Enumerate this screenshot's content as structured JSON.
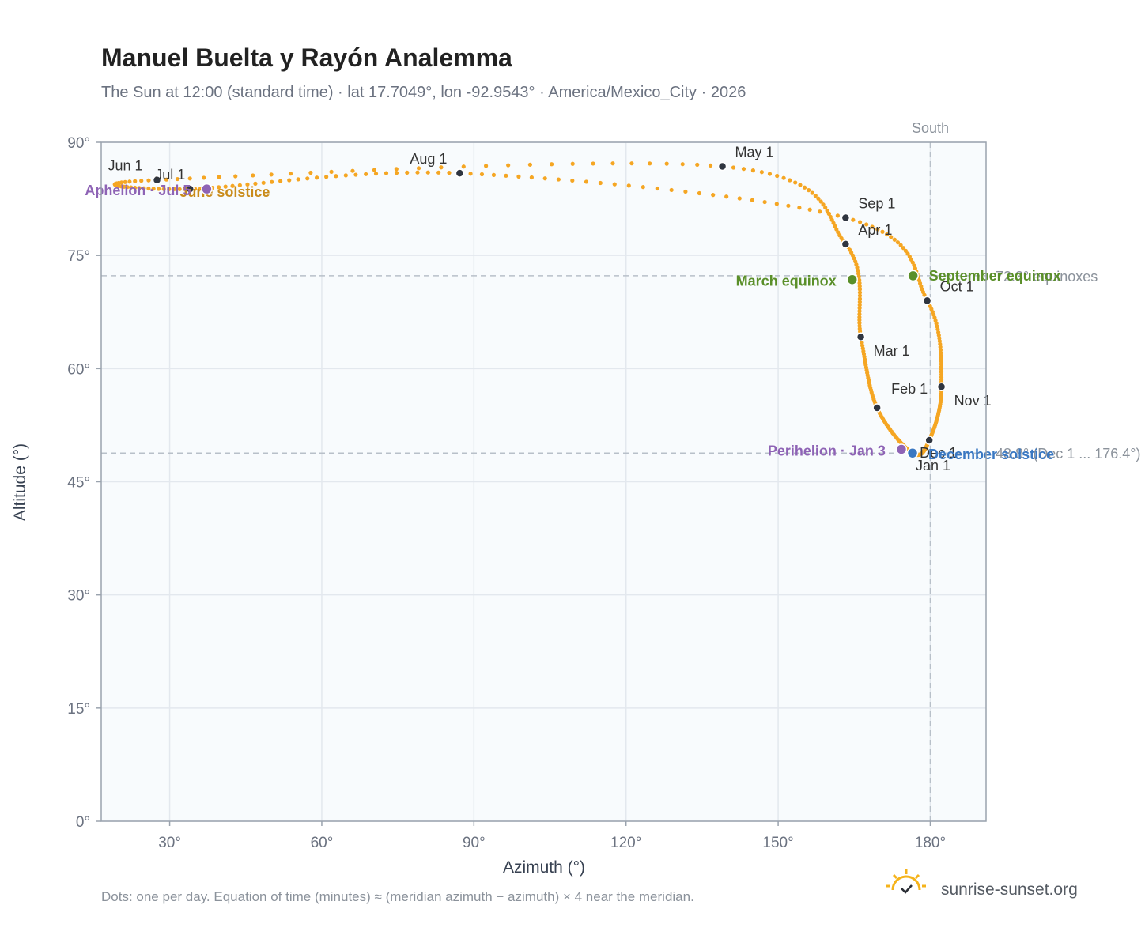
{
  "chart_data": {
    "type": "scatter",
    "title": "Manuel Buelta y Rayón Analemma",
    "subtitle": "The Sun at 12:00 (standard time) · lat 17.7049°, lon -92.9543° · America/Mexico_City · 2026",
    "xlabel": "Azimuth (°)",
    "ylabel": "Altitude (°)",
    "xlim": [
      16.5,
      191
    ],
    "ylim": [
      0,
      90
    ],
    "x_ticks": [
      {
        "value": 30,
        "label": "30°"
      },
      {
        "value": 60,
        "label": "60°"
      },
      {
        "value": 90,
        "label": "90°"
      },
      {
        "value": 120,
        "label": "120°"
      },
      {
        "value": 150,
        "label": "150°"
      },
      {
        "value": 180,
        "label": "180°"
      }
    ],
    "y_ticks": [
      {
        "value": 0,
        "label": "0°"
      },
      {
        "value": 15,
        "label": "15°"
      },
      {
        "value": 30,
        "label": "30°"
      },
      {
        "value": 45,
        "label": "45°"
      },
      {
        "value": 60,
        "label": "60°"
      },
      {
        "value": 75,
        "label": "75°"
      },
      {
        "value": 90,
        "label": "90°"
      }
    ],
    "grid": true,
    "path_color": "#f5a623",
    "month_markers": [
      {
        "label": "Jan 1",
        "az": 176.5,
        "alt": 48.8
      },
      {
        "label": "Feb 1",
        "az": 169.5,
        "alt": 54.8
      },
      {
        "label": "Mar 1",
        "az": 166.3,
        "alt": 64.2
      },
      {
        "label": "Apr 1",
        "az": 163.3,
        "alt": 76.5
      },
      {
        "label": "May 1",
        "az": 139.0,
        "alt": 86.8
      },
      {
        "label": "Jun 1",
        "az": 27.5,
        "alt": 85.0
      },
      {
        "label": "Jul 1",
        "az": 34.0,
        "alt": 83.8
      },
      {
        "label": "Aug 1",
        "az": 87.2,
        "alt": 85.9
      },
      {
        "label": "Sep 1",
        "az": 163.3,
        "alt": 80.0
      },
      {
        "label": "Oct 1",
        "az": 179.4,
        "alt": 69.0
      },
      {
        "label": "Nov 1",
        "az": 182.2,
        "alt": 57.6
      },
      {
        "label": "Dec 1",
        "az": 179.8,
        "alt": 50.5
      }
    ],
    "events": [
      {
        "label": "March equinox",
        "az": 164.6,
        "alt": 71.8,
        "color": "#5a8f29"
      },
      {
        "label": "September equinox",
        "az": 176.6,
        "alt": 72.3,
        "color": "#5a8f29"
      },
      {
        "label": "June solstice",
        "az": 37.3,
        "alt": 83.8,
        "color": "#c98b1a"
      },
      {
        "label": "December solstice",
        "az": 176.5,
        "alt": 48.8,
        "color": "#3a78c2"
      },
      {
        "label": "Perihelion · Jan 3",
        "az": 174.3,
        "alt": 49.3,
        "color": "#8e63b5"
      },
      {
        "label": "Aphelion · Jul 5",
        "az": 37.3,
        "alt": 83.8,
        "color": "#8e63b5"
      }
    ],
    "reference_lines": [
      {
        "axis": "y",
        "value": 72.3,
        "label": "72.3° equinoxes"
      },
      {
        "axis": "y",
        "value": 48.8,
        "label": "48.8° (Dec 1 ... 176.4°)"
      },
      {
        "axis": "x",
        "value": 180,
        "label": "South"
      }
    ],
    "footnote": "Dots: one per day. Equation of time (minutes) ≈ (meridian azimuth − azimuth) × 4 near the meridian.",
    "brand": "sunrise-sunset.org"
  }
}
